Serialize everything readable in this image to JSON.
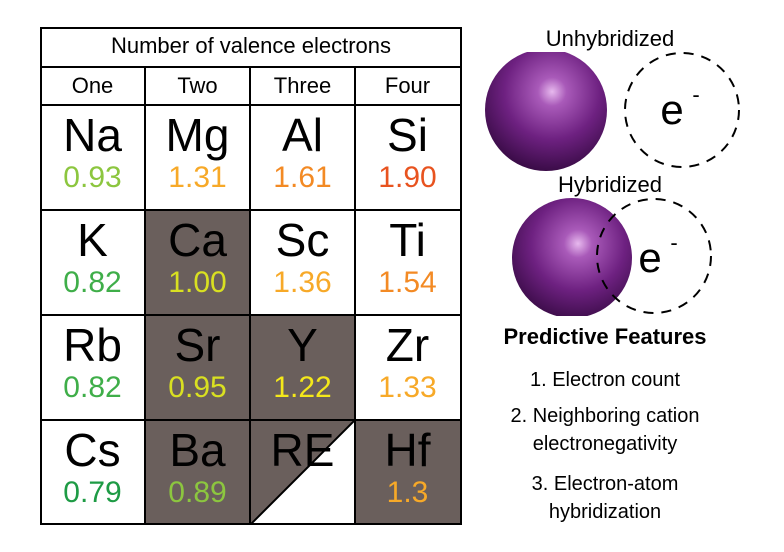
{
  "table": {
    "header": "Number of valence electrons",
    "columns": [
      "One",
      "Two",
      "Three",
      "Four"
    ],
    "cells": [
      {
        "symbol": "Na",
        "en": "0.93",
        "color": "#8cc63f",
        "shaded": false
      },
      {
        "symbol": "Mg",
        "en": "1.31",
        "color": "#f7a928",
        "shaded": false
      },
      {
        "symbol": "Al",
        "en": "1.61",
        "color": "#f38a24",
        "shaded": false
      },
      {
        "symbol": "Si",
        "en": "1.90",
        "color": "#e8531f",
        "shaded": false
      },
      {
        "symbol": "K",
        "en": "0.82",
        "color": "#3fae49",
        "shaded": false
      },
      {
        "symbol": "Ca",
        "en": "1.00",
        "color": "#d9e021",
        "shaded": true
      },
      {
        "symbol": "Sc",
        "en": "1.36",
        "color": "#f7a928",
        "shaded": false
      },
      {
        "symbol": "Ti",
        "en": "1.54",
        "color": "#f38a24",
        "shaded": false
      },
      {
        "symbol": "Rb",
        "en": "0.82",
        "color": "#3fae49",
        "shaded": false
      },
      {
        "symbol": "Sr",
        "en": "0.95",
        "color": "#d9e021",
        "shaded": true
      },
      {
        "symbol": "Y",
        "en": "1.22",
        "color": "#f4e81a",
        "shaded": true
      },
      {
        "symbol": "Zr",
        "en": "1.33",
        "color": "#f7a928",
        "shaded": false
      },
      {
        "symbol": "Cs",
        "en": "0.79",
        "color": "#1e9b45",
        "shaded": false
      },
      {
        "symbol": "Ba",
        "en": "0.89",
        "color": "#8cc63f",
        "shaded": true
      },
      {
        "symbol": "RE",
        "en": "",
        "color": "#000000",
        "shaded": false,
        "split": true
      },
      {
        "symbol": "Hf",
        "en": "1.3",
        "color": "#f7a928",
        "shaded": true
      }
    ]
  },
  "diagram": {
    "unhybridized_label": "Unhybridized",
    "hybridized_label": "Hybridized",
    "electron_base": "e",
    "electron_sup": "-",
    "atom_color": "#7a2a8c"
  },
  "features": {
    "title": "Predictive Features",
    "items": [
      "1. Electron count",
      "2. Neighboring cation",
      "electronegativity",
      "3. Electron-atom",
      "hybridization"
    ]
  }
}
